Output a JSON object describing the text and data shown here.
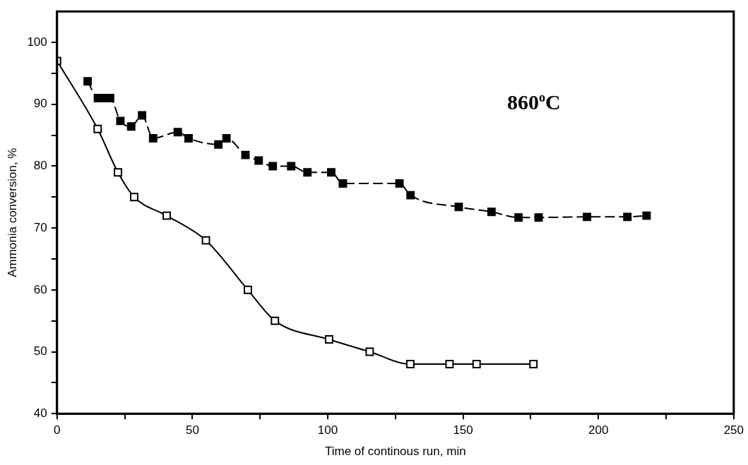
{
  "chart_data": {
    "type": "line",
    "xlabel": "Time of continous run, min",
    "ylabel": "Ammonia conversion, %",
    "annotations": [
      "860$^{o}$C"
    ],
    "xlim": [
      0,
      250
    ],
    "xticks": [
      0,
      {
        "value": 25,
        "label": null
      },
      50,
      {
        "value": 75,
        "label": null
      },
      100,
      {
        "value": 125,
        "label": null
      },
      150,
      {
        "value": 175,
        "label": null
      },
      200,
      {
        "value": 225,
        "label": null
      },
      250
    ],
    "ylim": [
      40,
      105
    ],
    "yticks": [
      40,
      {
        "value": 45,
        "label": null
      },
      50,
      {
        "value": 55,
        "label": null
      },
      60,
      {
        "value": 65,
        "label": null
      },
      70,
      {
        "value": 75,
        "label": null
      },
      80,
      {
        "value": 85,
        "label": null
      },
      90,
      {
        "value": 95,
        "label": null
      },
      100
    ],
    "grid": false,
    "legend": false,
    "marker": "square",
    "series": [
      {
        "color": "#000000",
        "line_style": "dashed",
        "x": [
          11.3,
          15.1,
          17.3,
          19.6,
          23.4,
          27.4,
          31.4,
          35.5,
          44.6,
          48.6,
          59.6,
          62.6,
          69.6,
          74.5,
          79.7,
          86.5,
          92.5,
          101.3,
          105.6,
          126.5,
          130.6,
          148.4,
          160.5,
          170.5,
          177.9,
          195.8,
          210.7,
          217.8
        ],
        "values": [
          93.7,
          91,
          91,
          91,
          87.3,
          86.4,
          88.2,
          84.5,
          85.5,
          84.5,
          83.5,
          84.5,
          81.8,
          80.9,
          80,
          80,
          79,
          79,
          77.2,
          77.2,
          75.3,
          73.4,
          72.6,
          71.7,
          71.7,
          71.8,
          71.8,
          72
        ]
      },
      {
        "color": "#000000",
        "line_style": "solid",
        "x": [
          0,
          15,
          22.5,
          28.5,
          40.5,
          55,
          70.5,
          80.5,
          100.5,
          115.5,
          130.5,
          145,
          155,
          176
        ],
        "values": [
          97,
          86,
          79,
          75,
          72,
          68,
          60,
          55,
          52,
          50,
          48,
          48,
          48,
          48
        ]
      }
    ]
  }
}
